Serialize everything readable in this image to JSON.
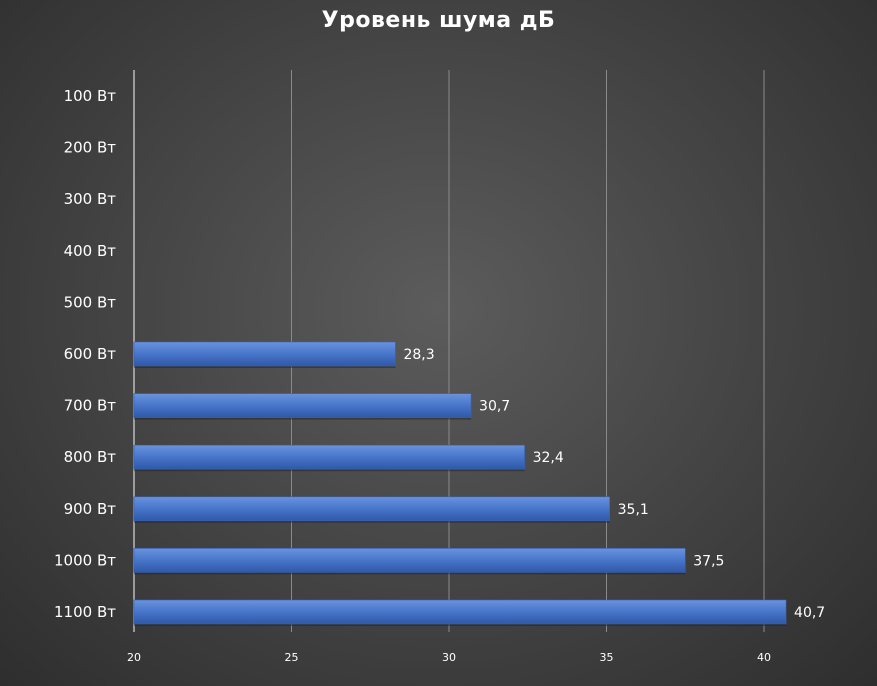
{
  "chart_data": {
    "type": "bar",
    "orientation": "horizontal",
    "title": "Уровень шума дБ",
    "xlabel": "",
    "ylabel": "",
    "categories": [
      "100 Вт",
      "200 Вт",
      "300 Вт",
      "400 Вт",
      "500 Вт",
      "600 Вт",
      "700 Вт",
      "800 Вт",
      "900 Вт",
      "1000 Вт",
      "1100 Вт"
    ],
    "values": [
      null,
      null,
      null,
      null,
      null,
      28.3,
      30.7,
      32.4,
      35.1,
      37.5,
      40.7
    ],
    "data_labels": [
      "",
      "",
      "",
      "",
      "",
      "28,3",
      "30,7",
      "32,4",
      "35,1",
      "37,5",
      "40,7"
    ],
    "xlim": [
      20,
      42
    ],
    "x_ticks": [
      20,
      25,
      30,
      35,
      40
    ],
    "x_tick_labels": [
      "20",
      "25",
      "30",
      "35",
      "40"
    ],
    "grid": true,
    "legend": "none",
    "bar_color": "#4472c4",
    "background_color": "#3f3f3f"
  }
}
